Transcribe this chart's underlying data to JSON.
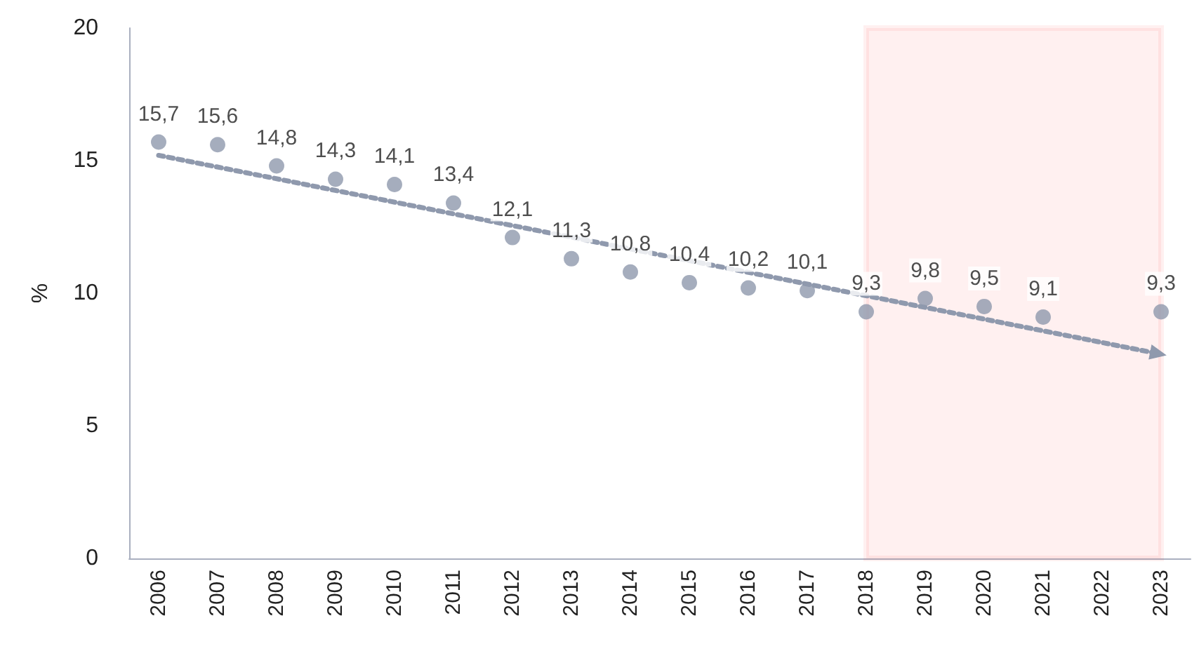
{
  "chart_data": {
    "type": "scatter",
    "ylabel": "%",
    "categories": [
      "2006",
      "2007",
      "2008",
      "2009",
      "2010",
      "2011",
      "2012",
      "2013",
      "2014",
      "2015",
      "2016",
      "2017",
      "2018",
      "2019",
      "2020",
      "2021",
      "2022",
      "2023"
    ],
    "series": [
      {
        "color": "#8f99ad",
        "marker": "circle",
        "values": [
          15.7,
          15.6,
          14.8,
          14.3,
          14.1,
          13.4,
          12.1,
          11.3,
          10.8,
          10.4,
          10.2,
          10.1,
          9.3,
          9.8,
          9.5,
          9.1,
          null,
          9.3
        ],
        "value_labels": [
          "15,7",
          "15,6",
          "14,8",
          "14,3",
          "14,1",
          "13,4",
          "12,1",
          "11,3",
          "10,8",
          "10,4",
          "10,2",
          "10,1",
          "9,3",
          "9,8",
          "9,5",
          "9,1",
          null,
          "9,3"
        ]
      },
      {
        "type": "line",
        "color": "#8f99ad",
        "line_style": "dotted",
        "values": [
          15.2,
          null,
          null,
          null,
          null,
          null,
          null,
          null,
          null,
          null,
          null,
          null,
          null,
          null,
          null,
          null,
          null,
          7.7
        ]
      }
    ],
    "bands": [
      {
        "axis": "x",
        "from": "2018",
        "to": "2023",
        "color": "#ff0000"
      }
    ],
    "ylim": [
      0,
      20
    ],
    "yticks": [
      0,
      5,
      10,
      15,
      20
    ]
  }
}
